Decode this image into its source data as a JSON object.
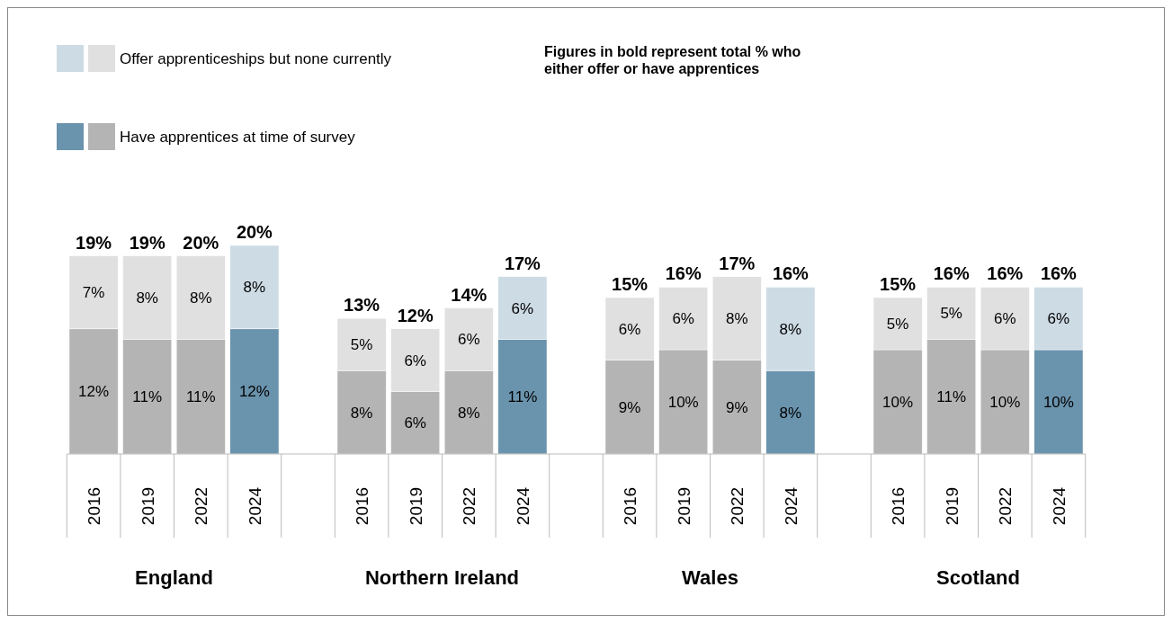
{
  "chart_data": {
    "type": "bar",
    "stacked": true,
    "legend": "top left",
    "categories": [
      "2016",
      "2019",
      "2022",
      "2024",
      null,
      "2016",
      "2019",
      "2022",
      "2024",
      null,
      "2016",
      "2019",
      "2022",
      "2024",
      null,
      "2016",
      "2019",
      "2022",
      "2024"
    ],
    "series": [
      {
        "name": "Have apprentices at time of survey",
        "color": "#b4b4b4",
        "colors": [
          "#b4b4b4",
          "#b4b4b4",
          "#b4b4b4",
          "#6a93ad",
          null,
          "#b4b4b4",
          "#b4b4b4",
          "#b4b4b4",
          "#6a93ad",
          null,
          "#b4b4b4",
          "#b4b4b4",
          "#b4b4b4",
          "#6a93ad",
          null,
          "#b4b4b4",
          "#b4b4b4",
          "#b4b4b4",
          "#6a93ad"
        ],
        "values": [
          12,
          11,
          11,
          12,
          null,
          8,
          6,
          8,
          11,
          null,
          9,
          10,
          9,
          8,
          null,
          10,
          11,
          10,
          10
        ],
        "value_labels": [
          "12%",
          "11%",
          "11%",
          "12%",
          null,
          "8%",
          "6%",
          "8%",
          "11%",
          null,
          "9%",
          "10%",
          "9%",
          "8%",
          null,
          "10%",
          "11%",
          "10%",
          "10%"
        ]
      },
      {
        "name": "Offer apprenticeships but none currently",
        "color": "#e0e0e0",
        "colors": [
          "#e0e0e0",
          "#e0e0e0",
          "#e0e0e0",
          "#cddbe5",
          null,
          "#e0e0e0",
          "#e0e0e0",
          "#e0e0e0",
          "#cddbe5",
          null,
          "#e0e0e0",
          "#e0e0e0",
          "#e0e0e0",
          "#cddbe5",
          null,
          "#e0e0e0",
          "#e0e0e0",
          "#e0e0e0",
          "#cddbe5"
        ],
        "values": [
          7,
          8,
          8,
          8,
          null,
          5,
          6,
          6,
          6,
          null,
          6,
          6,
          8,
          8,
          null,
          5,
          5,
          6,
          6
        ],
        "value_labels": [
          "7%",
          "8%",
          "8%",
          "8%",
          null,
          "5%",
          "6%",
          "6%",
          "6%",
          null,
          "6%",
          "6%",
          "8%",
          "8%",
          null,
          "5%",
          "5%",
          "6%",
          "6%"
        ]
      }
    ],
    "totals": [
      "19%",
      "19%",
      "20%",
      "20%",
      null,
      "13%",
      "12%",
      "14%",
      "17%",
      null,
      "15%",
      "16%",
      "17%",
      "16%",
      null,
      "15%",
      "16%",
      "16%",
      "16%"
    ],
    "annotations": [
      "Figures in bold represent total % who either offer or have apprentices",
      "England",
      "Northern Ireland",
      "Wales",
      "Scotland"
    ]
  }
}
